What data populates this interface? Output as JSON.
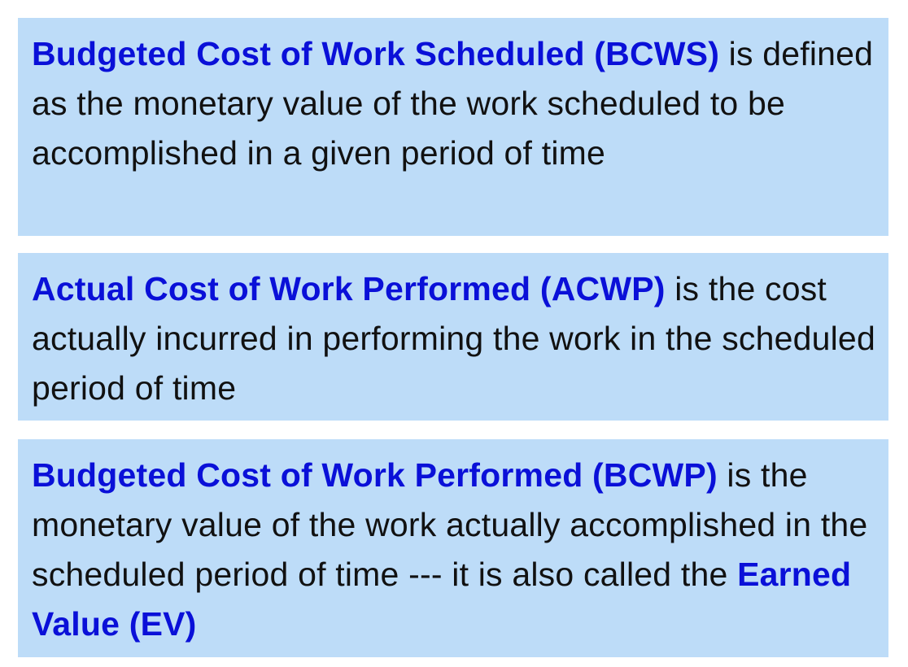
{
  "definitions": [
    {
      "term": "Budgeted Cost of Work Scheduled (BCWS)",
      "text": " is defined as the monetary value of the work scheduled to be accomplished in a given period of time"
    },
    {
      "term": "Actual Cost of Work Performed (ACWP)",
      "text": " is the cost actually incurred in performing the work in the scheduled period of time"
    },
    {
      "term": "Budgeted Cost of Work Performed (BCWP)",
      "text": " is the monetary value of the work actually accomplished in the scheduled period of time --- it is also called the ",
      "term2": "Earned Value (EV)"
    }
  ],
  "colors": {
    "box_background": "#bddcf8",
    "term_color": "#0a10d8",
    "text_color": "#111111"
  }
}
